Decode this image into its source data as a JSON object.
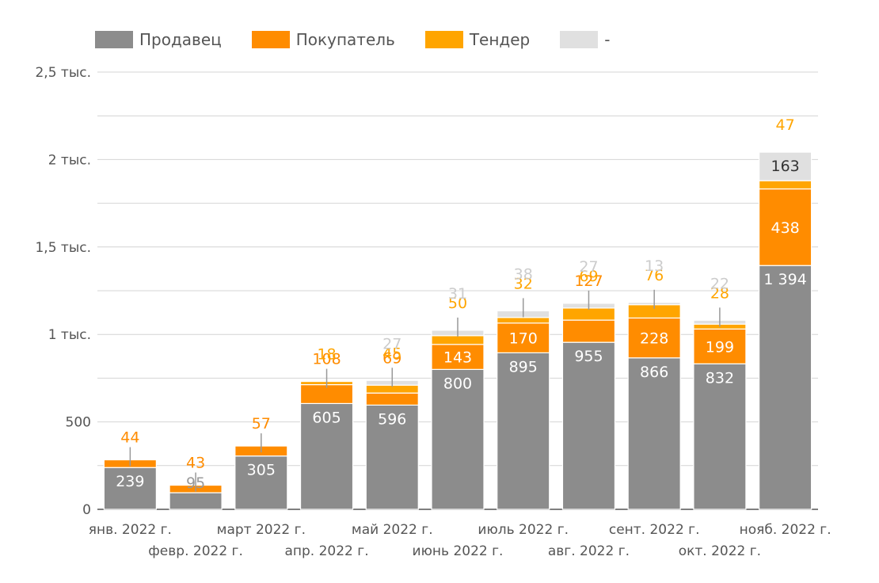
{
  "chart_data": {
    "type": "bar",
    "stacked": true,
    "title": "",
    "xlabel": "",
    "ylabel": "",
    "ylim": [
      0,
      2500
    ],
    "grid": true,
    "legend_position": "top-left",
    "y_ticks": [
      {
        "value": 0,
        "label": "0"
      },
      {
        "value": 500,
        "label": "500"
      },
      {
        "value": 1000,
        "label": "1 тыс."
      },
      {
        "value": 1500,
        "label": "1,5 тыс."
      },
      {
        "value": 2000,
        "label": "2 тыс."
      },
      {
        "value": 2500,
        "label": "2,5 тыс."
      }
    ],
    "categories": [
      "янв. 2022 г.",
      "февр. 2022 г.",
      "март 2022 г.",
      "апр. 2022 г.",
      "май 2022 г.",
      "июнь 2022 г.",
      "июль 2022 г.",
      "авг. 2022 г.",
      "сент. 2022 г.",
      "окт. 2022 г.",
      "нояб. 2022 г."
    ],
    "series": [
      {
        "name": "Продавец",
        "color": "#8c8c8c",
        "values": [
          239,
          95,
          305,
          605,
          596,
          800,
          895,
          955,
          866,
          832,
          1394
        ]
      },
      {
        "name": "Покупатель",
        "color": "#ff8c00",
        "values": [
          44,
          43,
          57,
          108,
          69,
          143,
          170,
          127,
          228,
          199,
          438
        ]
      },
      {
        "name": "Тендер",
        "color": "#ffa500",
        "values": [
          0,
          0,
          0,
          18,
          45,
          50,
          32,
          69,
          76,
          28,
          47
        ]
      },
      {
        "name": "-",
        "color": "#e0e0e0",
        "values": [
          0,
          0,
          0,
          0,
          27,
          31,
          38,
          27,
          13,
          22,
          163
        ]
      }
    ],
    "data_labels": [
      [
        {
          "text": "239",
          "color": "#ffffff"
        },
        {
          "text": "44",
          "color": "#ff8c00"
        },
        {
          "text": "",
          "color": "#ffa500"
        },
        {
          "text": "",
          "color": "#cccccc"
        }
      ],
      [
        {
          "text": "95",
          "color": "#999999"
        },
        {
          "text": "43",
          "color": "#ff8c00"
        },
        {
          "text": "",
          "color": "#ffa500"
        },
        {
          "text": "",
          "color": "#cccccc"
        }
      ],
      [
        {
          "text": "305",
          "color": "#ffffff"
        },
        {
          "text": "57",
          "color": "#ff8c00"
        },
        {
          "text": "",
          "color": "#ffa500"
        },
        {
          "text": "",
          "color": "#cccccc"
        }
      ],
      [
        {
          "text": "605",
          "color": "#ffffff"
        },
        {
          "text": "108",
          "color": "#ff8c00"
        },
        {
          "text": "18",
          "color": "#ffa500"
        },
        {
          "text": "",
          "color": "#cccccc"
        }
      ],
      [
        {
          "text": "596",
          "color": "#ffffff"
        },
        {
          "text": "69",
          "color": "#ff8c00"
        },
        {
          "text": "45",
          "color": "#ffa500"
        },
        {
          "text": "27",
          "color": "#cccccc"
        }
      ],
      [
        {
          "text": "800",
          "color": "#ffffff"
        },
        {
          "text": "143",
          "color": "#ffffff"
        },
        {
          "text": "50",
          "color": "#ffa500"
        },
        {
          "text": "31",
          "color": "#cccccc"
        }
      ],
      [
        {
          "text": "895",
          "color": "#ffffff"
        },
        {
          "text": "170",
          "color": "#ffffff"
        },
        {
          "text": "32",
          "color": "#ffa500"
        },
        {
          "text": "38",
          "color": "#cccccc"
        }
      ],
      [
        {
          "text": "955",
          "color": "#ffffff"
        },
        {
          "text": "127",
          "color": "#ff8c00"
        },
        {
          "text": "69",
          "color": "#ffa500"
        },
        {
          "text": "27",
          "color": "#cccccc"
        }
      ],
      [
        {
          "text": "866",
          "color": "#ffffff"
        },
        {
          "text": "228",
          "color": "#ffffff"
        },
        {
          "text": "76",
          "color": "#ffa500"
        },
        {
          "text": "13",
          "color": "#cccccc"
        }
      ],
      [
        {
          "text": "832",
          "color": "#ffffff"
        },
        {
          "text": "199",
          "color": "#ffffff"
        },
        {
          "text": "28",
          "color": "#ffa500"
        },
        {
          "text": "22",
          "color": "#cccccc"
        }
      ],
      [
        {
          "text": "1 394",
          "color": "#ffffff"
        },
        {
          "text": "438",
          "color": "#ffffff"
        },
        {
          "text": "47",
          "color": "#ffa500"
        },
        {
          "text": "163",
          "color": "#333333"
        }
      ]
    ]
  }
}
